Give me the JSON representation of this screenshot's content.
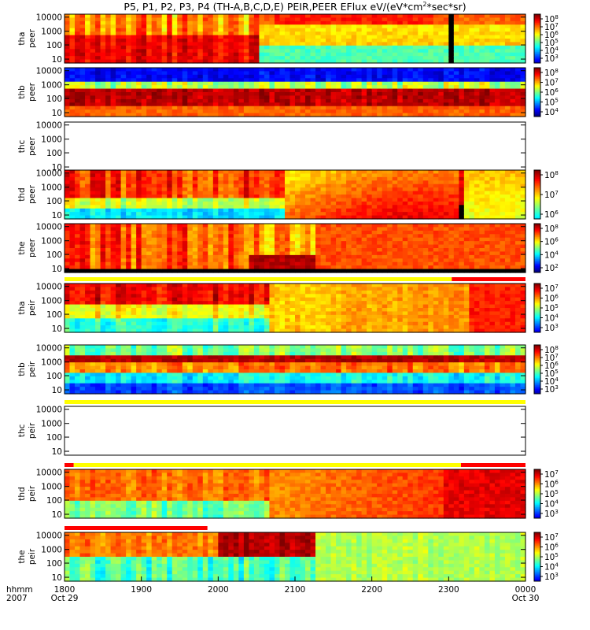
{
  "title": "P5, P1, P2, P3, P4 (TH-A,B,C,D,E) PEIR,PEER EFlux eV/(eV*cm",
  "title_sup": "2",
  "title_tail": "*sec*sr)",
  "colors": {
    "red": "#ff0000",
    "yellow": "#ffff00",
    "black": "#000000",
    "white": "#ffffff"
  },
  "chart_data": {
    "type": "heatmap",
    "x_ticks": [
      "1800",
      "1900",
      "2000",
      "2100",
      "2200",
      "2300",
      "0000"
    ],
    "x_sublabels": {
      "left": "Oct 29",
      "right": "Oct 30"
    },
    "x_header": {
      "top": "hhmm",
      "bottom": "2007"
    },
    "y_ticks": [
      "10000",
      "1000",
      "100",
      "10"
    ],
    "panels": [
      {
        "probe": "tha",
        "type": "peer",
        "ylabel1": "tha",
        "ylabel2": "peer",
        "has_data": true,
        "cbar": [
          {
            "t": "10",
            "e": "8"
          },
          {
            "t": "10",
            "e": "7"
          },
          {
            "t": "10",
            "e": "6"
          },
          {
            "t": "10",
            "e": "5"
          },
          {
            "t": "10",
            "e": "4"
          },
          {
            "t": "10",
            "e": "3"
          }
        ],
        "cmin": 0.08,
        "cmax": 1.0,
        "upper_bar": null
      },
      {
        "probe": "thb",
        "type": "peer",
        "ylabel1": "thb",
        "ylabel2": "peer",
        "has_data": true,
        "cbar": [
          {
            "t": "10",
            "e": "8"
          },
          {
            "t": "10",
            "e": "7"
          },
          {
            "t": "10",
            "e": "6"
          },
          {
            "t": "10",
            "e": "5"
          },
          {
            "t": "10",
            "e": "4"
          }
        ],
        "cmin": 0.0,
        "cmax": 1.0,
        "upper_bar": null
      },
      {
        "probe": "thc",
        "type": "peer",
        "ylabel1": "thc",
        "ylabel2": "peer",
        "has_data": false,
        "cbar": [],
        "cmin": 0,
        "cmax": 1,
        "upper_bar": null
      },
      {
        "probe": "thd",
        "type": "peer",
        "ylabel1": "thd",
        "ylabel2": "peer",
        "has_data": true,
        "cbar": [
          {
            "t": "10",
            "e": "8"
          },
          {
            "t": "10",
            "e": "7"
          },
          {
            "t": "10",
            "e": "6"
          }
        ],
        "cmin": 0.35,
        "cmax": 1.0,
        "upper_bar": null
      },
      {
        "probe": "the",
        "type": "peer",
        "ylabel1": "the",
        "ylabel2": "peer",
        "has_data": true,
        "cbar": [
          {
            "t": "10",
            "e": "8"
          },
          {
            "t": "10",
            "e": "6"
          },
          {
            "t": "10",
            "e": "4"
          },
          {
            "t": "10",
            "e": "2"
          }
        ],
        "cmin": 0.0,
        "cmax": 1.0,
        "upper_bar": null
      },
      {
        "probe": "tha",
        "type": "peir",
        "ylabel1": "tha",
        "ylabel2": "peir",
        "has_data": true,
        "cbar": [
          {
            "t": "10",
            "e": "7"
          },
          {
            "t": "10",
            "e": "6"
          },
          {
            "t": "10",
            "e": "5"
          },
          {
            "t": "10",
            "e": "4"
          },
          {
            "t": "10",
            "e": "3"
          }
        ],
        "cmin": 0.1,
        "cmax": 1.0,
        "upper_bar": [
          {
            "from": 0.0,
            "to": 0.84,
            "color": "yellow"
          },
          {
            "from": 0.84,
            "to": 1.0,
            "color": "red"
          }
        ]
      },
      {
        "probe": "thb",
        "type": "peir",
        "ylabel1": "thb",
        "ylabel2": "peir",
        "has_data": true,
        "cbar": [
          {
            "t": "10",
            "e": "8"
          },
          {
            "t": "10",
            "e": "7"
          },
          {
            "t": "10",
            "e": "6"
          },
          {
            "t": "10",
            "e": "5"
          },
          {
            "t": "10",
            "e": "4"
          },
          {
            "t": "10",
            "e": "3"
          }
        ],
        "cmin": 0.05,
        "cmax": 1.0,
        "upper_bar": null
      },
      {
        "probe": "thc",
        "type": "peir",
        "ylabel1": "thc",
        "ylabel2": "peir",
        "has_data": false,
        "cbar": [],
        "cmin": 0,
        "cmax": 1,
        "upper_bar": [
          {
            "from": 0.0,
            "to": 1.0,
            "color": "yellow"
          }
        ]
      },
      {
        "probe": "thd",
        "type": "peir",
        "ylabel1": "thd",
        "ylabel2": "peir",
        "has_data": true,
        "cbar": [
          {
            "t": "10",
            "e": "7"
          },
          {
            "t": "10",
            "e": "6"
          },
          {
            "t": "10",
            "e": "5"
          },
          {
            "t": "10",
            "e": "4"
          },
          {
            "t": "10",
            "e": "3"
          }
        ],
        "cmin": 0.1,
        "cmax": 1.0,
        "upper_bar": [
          {
            "from": 0.0,
            "to": 0.02,
            "color": "red"
          },
          {
            "from": 0.02,
            "to": 0.86,
            "color": "yellow"
          },
          {
            "from": 0.86,
            "to": 1.0,
            "color": "red"
          }
        ]
      },
      {
        "probe": "the",
        "type": "peir",
        "ylabel1": "the",
        "ylabel2": "peir",
        "has_data": true,
        "cbar": [
          {
            "t": "10",
            "e": "7"
          },
          {
            "t": "10",
            "e": "6"
          },
          {
            "t": "10",
            "e": "5"
          },
          {
            "t": "10",
            "e": "4"
          },
          {
            "t": "10",
            "e": "3"
          }
        ],
        "cmin": 0.1,
        "cmax": 1.0,
        "upper_bar": [
          {
            "from": 0.0,
            "to": 0.31,
            "color": "red"
          }
        ]
      }
    ]
  }
}
